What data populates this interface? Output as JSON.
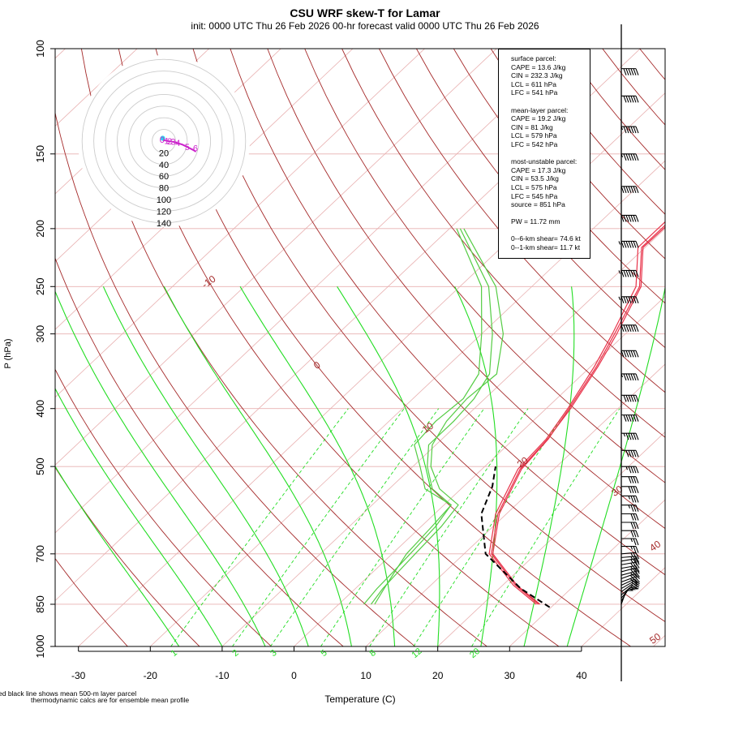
{
  "title": "CSU WRF skew-T for Lamar",
  "subtitle": "init: 0000 UTC Thu 26 Feb 2026    00-hr forecast valid 0000 UTC Thu 26 Feb 2026",
  "footnote_1": "ed black line shows mean 500-m layer parcel",
  "footnote_2": "thermodynamic calcs are for ensemble mean profile",
  "stats": {
    "surface_header": "surface parcel:",
    "surface_cape": "CAPE = 13.6 J/kg",
    "surface_cin": "CIN = 232.3 J/kg",
    "surface_lcl": "LCL = 611 hPa",
    "surface_lfc": "LFC = 541 hPa",
    "mean_header": "mean-layer parcel:",
    "mean_cape": "CAPE = 19.2 J/kg",
    "mean_cin": "CIN = 81 J/kg",
    "mean_lcl": "LCL = 579 hPa",
    "mean_lfc": "LFC = 542 hPa",
    "mu_header": "most-unstable parcel:",
    "mu_cape": "CAPE = 17.3 J/kg",
    "mu_cin": "CIN = 53.5 J/kg",
    "mu_lcl": "LCL = 575 hPa",
    "mu_lfc": "LFC = 545 hPa",
    "mu_source": "source = 851 hPa",
    "pw": "PW =  11.72 mm",
    "shear_6km": "0--6-km shear= 74.6 kt",
    "shear_1km": "0--1-km shear= 11.7 kt"
  },
  "colors": {
    "isotherm": "#e8b0b0",
    "isobar": "#e8b0b0",
    "dry_adiabat": "#a52a2a",
    "moist_adiabat": "#22dd22",
    "mixing_ratio": "#22dd22",
    "temperature": "#e8334a",
    "dewpoint": "#55cc44",
    "parcel": "#000000",
    "hodograph_rings": "#cccccc"
  },
  "chart_data": {
    "type": "skew-t",
    "xlabel": "Temperature (C)",
    "ylabel": "P (hPa)",
    "xlim": [
      -33,
      52
    ],
    "ylim": [
      1000,
      100
    ],
    "x_ticks": [
      -30,
      -20,
      -10,
      0,
      10,
      20,
      30,
      40
    ],
    "y_ticks": [
      100,
      150,
      200,
      250,
      300,
      400,
      500,
      700,
      850,
      1000
    ],
    "isobars": [
      100,
      150,
      200,
      250,
      300,
      400,
      500,
      700,
      850,
      1000
    ],
    "isotherm_step": 10,
    "dry_adiabat_labels": [
      {
        "text": "-10",
        "theta": 310,
        "p": 248
      },
      {
        "text": "0",
        "theta": 320,
        "p": 342
      },
      {
        "text": "10",
        "theta": 330,
        "p": 435
      },
      {
        "text": "20",
        "theta": 340,
        "p": 497
      },
      {
        "text": "30",
        "theta": 350,
        "p": 555
      },
      {
        "text": "40",
        "theta": 360,
        "p": 686
      },
      {
        "text": "50",
        "theta": 370,
        "p": 980
      }
    ],
    "mixing_ratio_labels": [
      "1",
      "2",
      "3",
      "5",
      "8",
      "12",
      "20"
    ],
    "mixing_ratio_values": [
      1,
      2,
      3,
      5,
      8,
      12,
      20
    ],
    "temperature_series": [
      {
        "name": "member 1",
        "points": [
          [
            850,
            28.0
          ],
          [
            790,
            22.0
          ],
          [
            700,
            14.0
          ],
          [
            600,
            9.0
          ],
          [
            505,
            5.5
          ],
          [
            450,
            4.8
          ],
          [
            400,
            3.2
          ],
          [
            340,
            0.8
          ],
          [
            300,
            -1.5
          ],
          [
            250,
            -5.0
          ],
          [
            215,
            -10.5
          ],
          [
            195,
            -10.5
          ],
          [
            160,
            -8.5
          ],
          [
            125,
            -10.5
          ],
          [
            115,
            -10.0
          ]
        ]
      },
      {
        "name": "member 2",
        "points": [
          [
            850,
            27.5
          ],
          [
            790,
            21.5
          ],
          [
            700,
            13.5
          ],
          [
            600,
            8.5
          ],
          [
            505,
            5.0
          ],
          [
            450,
            4.5
          ],
          [
            400,
            3.0
          ],
          [
            340,
            0.5
          ],
          [
            300,
            -1.8
          ],
          [
            250,
            -5.5
          ],
          [
            215,
            -11.0
          ],
          [
            195,
            -11.0
          ],
          [
            160,
            -9.0
          ],
          [
            125,
            -11.0
          ],
          [
            113,
            -10.6
          ]
        ]
      },
      {
        "name": "member 3",
        "points": [
          [
            850,
            27.8
          ],
          [
            790,
            21.8
          ],
          [
            700,
            13.8
          ],
          [
            600,
            8.8
          ],
          [
            505,
            5.3
          ],
          [
            450,
            4.7
          ],
          [
            400,
            3.4
          ],
          [
            340,
            1.0
          ],
          [
            300,
            -1.2
          ],
          [
            250,
            -4.8
          ],
          [
            215,
            -10.3
          ],
          [
            195,
            -10.2
          ],
          [
            160,
            -8.2
          ],
          [
            125,
            -10.2
          ],
          [
            115,
            -9.8
          ]
        ]
      }
    ],
    "dewpoint_series": [
      {
        "name": "member 1",
        "points": [
          [
            850,
            4.5
          ],
          [
            800,
            3.8
          ],
          [
            750,
            3.5
          ],
          [
            700,
            3.2
          ],
          [
            630,
            2.8
          ],
          [
            580,
            2.0
          ],
          [
            545,
            -3.0
          ],
          [
            500,
            -7.5
          ],
          [
            460,
            -10.5
          ],
          [
            420,
            -12.0
          ],
          [
            385,
            -12.5
          ],
          [
            350,
            -12.0
          ],
          [
            300,
            -17.0
          ],
          [
            250,
            -25.0
          ],
          [
            200,
            -38.0
          ]
        ]
      },
      {
        "name": "member 2",
        "points": [
          [
            850,
            5.0
          ],
          [
            800,
            4.0
          ],
          [
            750,
            3.0
          ],
          [
            700,
            2.0
          ],
          [
            630,
            1.5
          ],
          [
            580,
            1.0
          ],
          [
            545,
            -4.0
          ],
          [
            500,
            -8.0
          ],
          [
            460,
            -11.0
          ],
          [
            420,
            -11.0
          ],
          [
            385,
            -11.5
          ],
          [
            350,
            -13.0
          ],
          [
            300,
            -18.5
          ],
          [
            250,
            -26.0
          ],
          [
            200,
            -38.5
          ]
        ]
      },
      {
        "name": "member 3",
        "points": [
          [
            850,
            3.5
          ],
          [
            800,
            3.0
          ],
          [
            750,
            2.8
          ],
          [
            700,
            2.5
          ],
          [
            630,
            2.0
          ],
          [
            580,
            1.0
          ],
          [
            545,
            -5.0
          ],
          [
            500,
            -9.0
          ],
          [
            460,
            -13.0
          ],
          [
            420,
            -13.5
          ],
          [
            385,
            -13.0
          ],
          [
            350,
            -14.5
          ],
          [
            300,
            -20.0
          ],
          [
            250,
            -27.0
          ],
          [
            200,
            -39.0
          ]
        ]
      }
    ],
    "parcel_trace": [
      [
        860,
        29.8
      ],
      [
        800,
        23.0
      ],
      [
        700,
        13.0
      ],
      [
        600,
        6.5
      ],
      [
        540,
        4.0
      ],
      [
        500,
        1.5
      ]
    ],
    "hodograph": {
      "ring_labels": [
        "20",
        "40",
        "60",
        "80",
        "100",
        "120",
        "140"
      ],
      "ring_values": [
        20,
        40,
        60,
        80,
        100,
        120,
        140
      ],
      "trace_points": [
        [
          -2,
          2
        ],
        [
          3,
          1
        ],
        [
          8,
          0
        ],
        [
          14,
          -1
        ],
        [
          20,
          -2
        ],
        [
          26,
          -4
        ],
        [
          32,
          -6
        ],
        [
          38,
          -9
        ],
        [
          44,
          -12
        ],
        [
          50,
          -15
        ],
        [
          55,
          -18
        ]
      ],
      "height_labels": [
        "0",
        "1",
        "2",
        "3",
        "4",
        "5",
        "6"
      ],
      "height_label_points": [
        [
          -3,
          3
        ],
        [
          5,
          1
        ],
        [
          10,
          0
        ],
        [
          16,
          -1
        ],
        [
          24,
          -3
        ],
        [
          40,
          -10
        ],
        [
          54,
          -12
        ]
      ]
    },
    "wind_profile": [
      {
        "p": 850,
        "speed": 10,
        "dir": 200
      },
      {
        "p": 840,
        "speed": 10,
        "dir": 210
      },
      {
        "p": 830,
        "speed": 15,
        "dir": 220
      },
      {
        "p": 820,
        "speed": 15,
        "dir": 230
      },
      {
        "p": 810,
        "speed": 20,
        "dir": 235
      },
      {
        "p": 800,
        "speed": 20,
        "dir": 240
      },
      {
        "p": 790,
        "speed": 20,
        "dir": 245
      },
      {
        "p": 780,
        "speed": 25,
        "dir": 250
      },
      {
        "p": 770,
        "speed": 25,
        "dir": 250
      },
      {
        "p": 760,
        "speed": 25,
        "dir": 255
      },
      {
        "p": 750,
        "speed": 25,
        "dir": 255
      },
      {
        "p": 740,
        "speed": 25,
        "dir": 260
      },
      {
        "p": 730,
        "speed": 25,
        "dir": 260
      },
      {
        "p": 720,
        "speed": 25,
        "dir": 260
      },
      {
        "p": 710,
        "speed": 25,
        "dir": 265
      },
      {
        "p": 700,
        "speed": 25,
        "dir": 265
      },
      {
        "p": 680,
        "speed": 25,
        "dir": 270
      },
      {
        "p": 660,
        "speed": 25,
        "dir": 270
      },
      {
        "p": 640,
        "speed": 30,
        "dir": 270
      },
      {
        "p": 620,
        "speed": 30,
        "dir": 270
      },
      {
        "p": 600,
        "speed": 30,
        "dir": 270
      },
      {
        "p": 580,
        "speed": 35,
        "dir": 270
      },
      {
        "p": 560,
        "speed": 35,
        "dir": 270
      },
      {
        "p": 540,
        "speed": 40,
        "dir": 270
      },
      {
        "p": 520,
        "speed": 40,
        "dir": 270
      },
      {
        "p": 500,
        "speed": 45,
        "dir": 270
      },
      {
        "p": 470,
        "speed": 50,
        "dir": 270
      },
      {
        "p": 440,
        "speed": 55,
        "dir": 270
      },
      {
        "p": 410,
        "speed": 60,
        "dir": 270
      },
      {
        "p": 380,
        "speed": 60,
        "dir": 270
      },
      {
        "p": 350,
        "speed": 65,
        "dir": 270
      },
      {
        "p": 320,
        "speed": 70,
        "dir": 270
      },
      {
        "p": 290,
        "speed": 70,
        "dir": 270
      },
      {
        "p": 260,
        "speed": 75,
        "dir": 270
      },
      {
        "p": 235,
        "speed": 75,
        "dir": 270
      },
      {
        "p": 210,
        "speed": 75,
        "dir": 270
      },
      {
        "p": 190,
        "speed": 70,
        "dir": 270
      },
      {
        "p": 170,
        "speed": 70,
        "dir": 270
      },
      {
        "p": 150,
        "speed": 65,
        "dir": 270
      },
      {
        "p": 135,
        "speed": 65,
        "dir": 270
      },
      {
        "p": 120,
        "speed": 60,
        "dir": 270
      },
      {
        "p": 108,
        "speed": 60,
        "dir": 270
      }
    ]
  }
}
